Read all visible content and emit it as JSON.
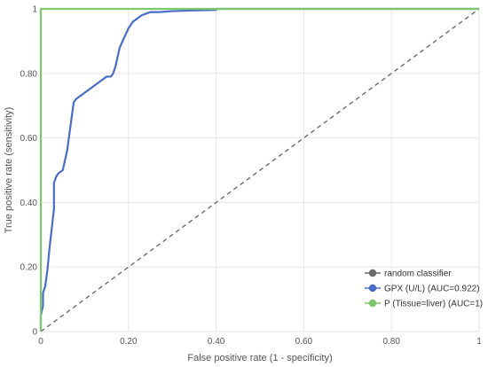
{
  "chart_data": {
    "type": "line",
    "title": "",
    "xlabel": "False positive rate (1 - specificity)",
    "ylabel": "True positive rate (sensitivity)",
    "xlim": [
      0,
      1
    ],
    "ylim": [
      0,
      1
    ],
    "x_ticks": [
      0,
      0.2,
      0.4,
      0.6,
      0.8,
      1
    ],
    "x_tick_labels": [
      "0",
      "0.20",
      "0.40",
      "0.60",
      "0.80",
      "1"
    ],
    "y_ticks": [
      0,
      0.2,
      0.4,
      0.6,
      0.8,
      1
    ],
    "y_tick_labels": [
      "0",
      "0.20",
      "0.40",
      "0.60",
      "0.80",
      "1"
    ],
    "grid": true,
    "legend_position": "bottom-right",
    "series": [
      {
        "name": "random classifier",
        "color": "#6b6b6b",
        "dashed": true,
        "x": [
          0,
          1
        ],
        "y": [
          0,
          1
        ]
      },
      {
        "name": "GPX (U/L) (AUC=0.922)",
        "color": "#4a6cc8",
        "dashed": false,
        "x": [
          0,
          0,
          0.005,
          0.005,
          0.01,
          0.015,
          0.02,
          0.025,
          0.03,
          0.03,
          0.035,
          0.04,
          0.05,
          0.055,
          0.06,
          0.065,
          0.07,
          0.075,
          0.08,
          0.09,
          0.1,
          0.11,
          0.12,
          0.13,
          0.14,
          0.15,
          0.16,
          0.165,
          0.17,
          0.175,
          0.18,
          0.19,
          0.2,
          0.205,
          0.21,
          0.22,
          0.23,
          0.24,
          0.25,
          0.27,
          0.3,
          0.35,
          0.4,
          0.4,
          0.5,
          0.6,
          0.7,
          0.8,
          0.9,
          1
        ],
        "y": [
          0,
          0.05,
          0.08,
          0.12,
          0.14,
          0.19,
          0.26,
          0.32,
          0.38,
          0.46,
          0.48,
          0.49,
          0.5,
          0.53,
          0.56,
          0.61,
          0.66,
          0.71,
          0.72,
          0.73,
          0.74,
          0.75,
          0.76,
          0.77,
          0.78,
          0.79,
          0.79,
          0.8,
          0.82,
          0.85,
          0.88,
          0.91,
          0.94,
          0.95,
          0.96,
          0.97,
          0.98,
          0.985,
          0.99,
          0.99,
          0.993,
          0.995,
          0.997,
          1,
          1,
          1,
          1,
          1,
          1,
          1
        ]
      },
      {
        "name": "P (Tissue=liver) (AUC=1)",
        "color": "#7cc86a",
        "dashed": false,
        "x": [
          0,
          0,
          1
        ],
        "y": [
          0,
          1,
          1
        ]
      }
    ]
  }
}
